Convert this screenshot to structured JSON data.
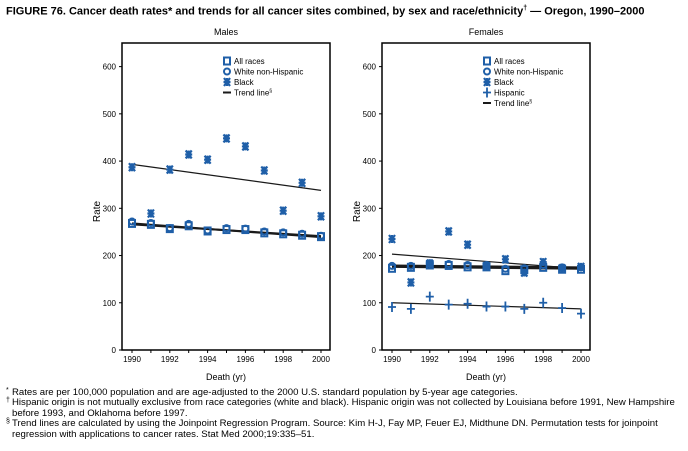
{
  "title": "FIGURE 76. Cancer death rates* and trends for all cancer sites combined, by sex and race/ethnicity",
  "title_mark": "†",
  "title_suffix": " — Oregon, 1990–2000",
  "colors": {
    "marker": "#1f5fa8",
    "trend": "#1a1a1a"
  },
  "chart_data": [
    {
      "type": "scatter",
      "title": "Males",
      "xlabel": "Death (yr)",
      "ylabel": "Rate",
      "ylim": [
        0,
        650
      ],
      "xlim": [
        1990,
        2000
      ],
      "yticks": [
        0,
        100,
        200,
        300,
        400,
        500,
        600
      ],
      "xticks": [
        1990,
        1992,
        1994,
        1996,
        1998,
        2000
      ],
      "legend_position": "top-right",
      "x": [
        1990,
        1991,
        1992,
        1993,
        1994,
        1995,
        1996,
        1997,
        1998,
        1999,
        2000
      ],
      "series": [
        {
          "name": "All races",
          "marker": "square",
          "values": [
            268,
            266,
            257,
            263,
            252,
            255,
            255,
            248,
            246,
            243,
            240
          ]
        },
        {
          "name": "White non-Hispanic",
          "marker": "circle",
          "values": [
            272,
            269,
            258,
            267,
            253,
            258,
            257,
            251,
            249,
            246,
            242
          ]
        },
        {
          "name": "Black",
          "marker": "star",
          "values": [
            387,
            289,
            382,
            414,
            403,
            448,
            431,
            380,
            295,
            354,
            283
          ]
        }
      ],
      "trend_label": "Trend line",
      "trend_mark": "§",
      "trends": [
        {
          "from": [
            1990,
            393
          ],
          "to": [
            2000,
            338
          ],
          "width": 1.2
        },
        {
          "from": [
            1990,
            266
          ],
          "to": [
            2000,
            241
          ],
          "width": 2
        },
        {
          "from": [
            1990,
            268
          ],
          "to": [
            2000,
            239
          ],
          "width": 2
        }
      ]
    },
    {
      "type": "scatter",
      "title": "Females",
      "xlabel": "Death (yr)",
      "ylabel": "Rate",
      "ylim": [
        0,
        650
      ],
      "xlim": [
        1990,
        2000
      ],
      "yticks": [
        0,
        100,
        200,
        300,
        400,
        500,
        600
      ],
      "xticks": [
        1990,
        1992,
        1994,
        1996,
        1998,
        2000
      ],
      "legend_position": "top-right",
      "x": [
        1990,
        1991,
        1992,
        1993,
        1994,
        1995,
        1996,
        1997,
        1998,
        1999,
        2000
      ],
      "series": [
        {
          "name": "All races",
          "marker": "square",
          "values": [
            173,
            175,
            180,
            179,
            176,
            176,
            168,
            170,
            175,
            171,
            171
          ]
        },
        {
          "name": "White non-Hispanic",
          "marker": "circle",
          "values": [
            178,
            178,
            184,
            182,
            180,
            180,
            172,
            173,
            180,
            175,
            175
          ]
        },
        {
          "name": "Black",
          "marker": "star",
          "values": [
            235,
            143,
            183,
            251,
            223,
            178,
            192,
            164,
            186,
            173,
            176
          ]
        },
        {
          "name": "Hispanic",
          "marker": "plus",
          "values": [
            91,
            87,
            113,
            96,
            98,
            92,
            92,
            87,
            100,
            89,
            77
          ]
        }
      ],
      "trend_label": "Trend line",
      "trend_mark": "§",
      "trends": [
        {
          "from": [
            1990,
            203
          ],
          "to": [
            2000,
            172
          ],
          "width": 1.2
        },
        {
          "from": [
            1990,
            176
          ],
          "to": [
            2000,
            172
          ],
          "width": 2
        },
        {
          "from": [
            1990,
            179
          ],
          "to": [
            2000,
            175
          ],
          "width": 2
        },
        {
          "from": [
            1990,
            100
          ],
          "to": [
            2000,
            87
          ],
          "width": 1.2
        }
      ]
    }
  ],
  "footnotes": [
    {
      "mark": "*",
      "text": "Rates are per 100,000 population and are age-adjusted to the 2000 U.S. standard population by 5-year age categories."
    },
    {
      "mark": "†",
      "text": "Hispanic origin is not mutually exclusive from race categories (white and black). Hispanic origin was not collected by Louisiana before 1991, New Hampshire before 1993, and Oklahoma before 1997."
    },
    {
      "mark": "§",
      "text": "Trend lines are calculated by using the Joinpoint Regression Program. Source: Kim H-J, Fay MP, Feuer EJ, Midthune DN. Permutation tests for joinpoint regression with applications to cancer rates. Stat Med 2000;19:335–51."
    }
  ]
}
